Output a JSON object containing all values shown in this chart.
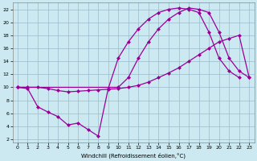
{
  "l1x": [
    0,
    1,
    2,
    3,
    4,
    5,
    6,
    7,
    8,
    9,
    10,
    11,
    12,
    13,
    14,
    15,
    16,
    17,
    18,
    19,
    20,
    21,
    22
  ],
  "l1y": [
    10,
    9.8,
    7.0,
    6.2,
    5.5,
    4.2,
    4.5,
    3.5,
    2.5,
    9.8,
    14.5,
    17.0,
    19.0,
    20.5,
    21.5,
    22.0,
    22.2,
    22.0,
    21.5,
    18.5,
    14.5,
    12.5,
    11.5
  ],
  "l2x": [
    0,
    1,
    2,
    3,
    4,
    5,
    6,
    7,
    8,
    9,
    10,
    11,
    12,
    13,
    14,
    15,
    16,
    17,
    18,
    19,
    20,
    21,
    22,
    23
  ],
  "l2y": [
    10,
    10,
    10,
    9.8,
    9.5,
    9.3,
    9.4,
    9.5,
    9.6,
    9.7,
    9.8,
    10.0,
    10.3,
    10.8,
    11.5,
    12.2,
    13.0,
    14.0,
    15.0,
    16.0,
    17.0,
    17.5,
    18.0,
    11.5
  ],
  "l3x": [
    0,
    10,
    11,
    12,
    13,
    14,
    15,
    16,
    17,
    18,
    19,
    20,
    21,
    22,
    23
  ],
  "l3y": [
    10,
    10.0,
    11.5,
    14.5,
    17.0,
    19.0,
    20.5,
    21.5,
    22.2,
    22.0,
    21.5,
    18.5,
    14.5,
    12.5,
    11.5
  ],
  "line_color": "#990099",
  "bg_color": "#cce8f0",
  "grid_color": "#99bbcc",
  "xlabel": "Windchill (Refroidissement éolien,°C)",
  "xlim": [
    -0.5,
    23.5
  ],
  "ylim": [
    1.5,
    23
  ],
  "xticks": [
    0,
    1,
    2,
    3,
    4,
    5,
    6,
    7,
    8,
    9,
    10,
    11,
    12,
    13,
    14,
    15,
    16,
    17,
    18,
    19,
    20,
    21,
    22,
    23
  ],
  "yticks": [
    2,
    4,
    6,
    8,
    10,
    12,
    14,
    16,
    18,
    20,
    22
  ],
  "marker": "D",
  "markersize": 2.5,
  "linewidth": 0.9
}
